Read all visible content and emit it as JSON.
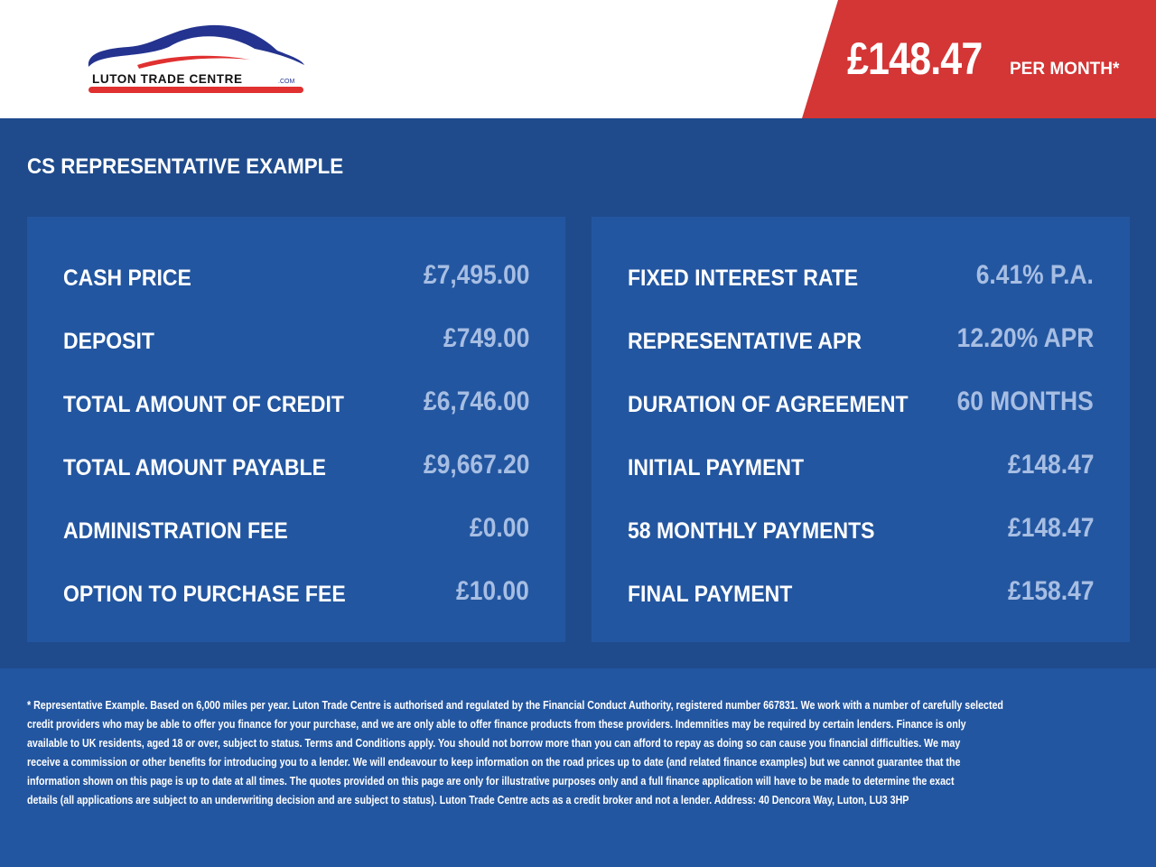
{
  "header": {
    "logo_text": "LUTON TRADE CENTRE.COM",
    "price": "£148.47",
    "price_suffix": "PER MONTH*"
  },
  "title": "CS REPRESENTATIVE EXAMPLE",
  "left_panel": [
    {
      "label": "CASH PRICE",
      "value": "£7,495.00"
    },
    {
      "label": "DEPOSIT",
      "value": "£749.00"
    },
    {
      "label": "TOTAL AMOUNT OF CREDIT",
      "value": "£6,746.00"
    },
    {
      "label": "TOTAL AMOUNT PAYABLE",
      "value": "£9,667.20"
    },
    {
      "label": "ADMINISTRATION FEE",
      "value": "£0.00"
    },
    {
      "label": "OPTION TO PURCHASE FEE",
      "value": "£10.00"
    }
  ],
  "right_panel": [
    {
      "label": "FIXED INTEREST RATE",
      "value": "6.41% P.A."
    },
    {
      "label": "REPRESENTATIVE APR",
      "value": "12.20% APR"
    },
    {
      "label": "DURATION OF AGREEMENT",
      "value": "60 MONTHS"
    },
    {
      "label": "INITIAL PAYMENT",
      "value": "£148.47"
    },
    {
      "label": "58 MONTHLY PAYMENTS",
      "value": "£148.47"
    },
    {
      "label": "FINAL PAYMENT",
      "value": "£158.47"
    }
  ],
  "footer_lines": [
    "* Representative Example. Based on 6,000 miles per year. Luton Trade Centre is authorised and regulated by the Financial Conduct Authority, registered number 667831. We work with a number of carefully selected",
    "credit providers who may be able to offer you finance for your purchase, and we are only able to offer finance products from these providers. Indemnities may be required by certain lenders. Finance is only",
    "available to UK residents, aged 18 or over, subject to status. Terms and Conditions apply. You should not borrow more than you can afford to repay as doing so can cause you financial difficulties. We may",
    "receive a commission or other benefits for introducing you to a lender. We will endeavour to keep information on the road prices up to date (and related finance examples) but we cannot guarantee that the",
    "information shown on this page is up to date at all times. The quotes provided on this page are only for illustrative purposes only and a full finance application will have to be made to determine the exact",
    "details (all applications are subject to an underwriting decision and are subject to status). Luton Trade Centre acts as a credit broker and not a lender. Address: 40 Dencora Way, Luton, LU3 3HP"
  ],
  "colors": {
    "background": "#1f4b8c",
    "panel": "#2356a0",
    "accent_red": "#d43535",
    "value_text": "#a7bee3"
  }
}
